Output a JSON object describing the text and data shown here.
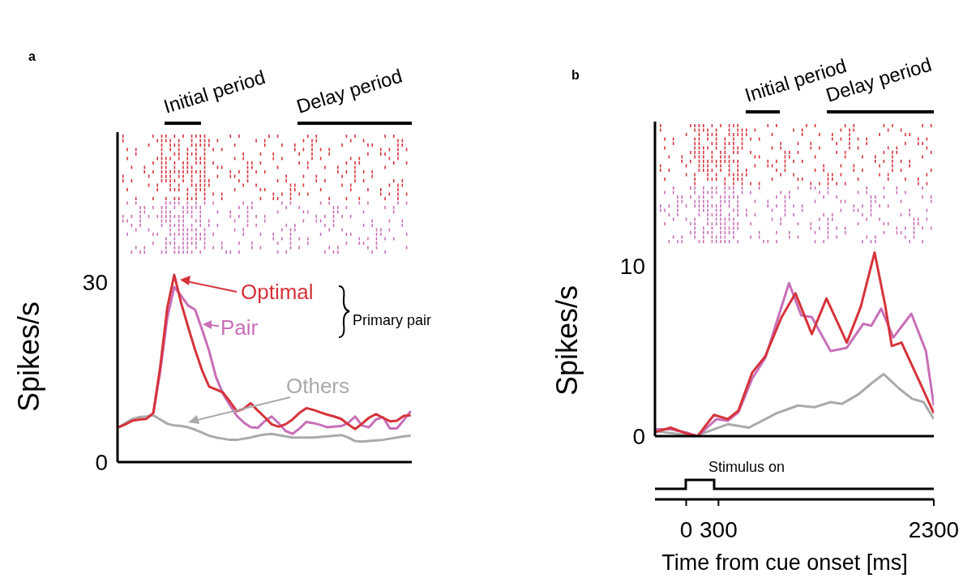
{
  "chart_data": [
    {
      "type": "line",
      "title": "a",
      "ylabel": "Spikes/s",
      "categories": [
        null,
        null,
        null,
        null,
        null,
        null,
        null,
        null,
        null,
        null,
        null,
        null,
        null,
        null,
        null,
        null,
        null,
        null,
        null,
        null,
        null,
        null,
        null,
        null,
        null,
        null,
        null,
        null,
        null,
        null,
        null,
        null,
        null,
        null,
        null,
        null,
        null,
        null,
        null,
        null,
        null,
        null,
        null
      ],
      "ylim": [
        0,
        55
      ],
      "yticks": [
        0,
        30
      ],
      "tick_labels": "y",
      "legend": "left",
      "marker": "none",
      "line_style": "solid",
      "annotations": [
        "Initial period",
        "Delay period",
        "Primary pair"
      ],
      "series": [
        {
          "name": "Optimal",
          "color": "#d6333a",
          "values": [
            5.8,
            6.3,
            6.9,
            7.1,
            7.2,
            8.2,
            16,
            25.7,
            31.2,
            26.5,
            22.5,
            18.7,
            15.3,
            12.6,
            12.1,
            11.6,
            10.1,
            8.5,
            8.9,
            9.8,
            8.6,
            7.5,
            6.3,
            5.9,
            6.3,
            7.1,
            8.2,
            9.0,
            8.7,
            8.3,
            7.9,
            7.6,
            7.2,
            6.3,
            5.5,
            6.4,
            7.4,
            8.0,
            7.4,
            6.8,
            6.9,
            7.7,
            7.8
          ]
        },
        {
          "name": "Pair",
          "color": "#c86fb8",
          "values": [
            null,
            null,
            null,
            null,
            null,
            8.2,
            15.2,
            24,
            29.2,
            27.7,
            26.1,
            25.4,
            22.1,
            18.6,
            14.2,
            11.4,
            9.5,
            7.7,
            6.6,
            5.8,
            5.7,
            6.8,
            7.6,
            6.5,
            5.2,
            4.7,
            5.6,
            6.7,
            6.5,
            6.2,
            5.8,
            5.9,
            6.0,
            6.5,
            7.6,
            6.1,
            5.8,
            7.1,
            7.5,
            5.6,
            5.6,
            7.0,
            8.5
          ]
        },
        {
          "name": "Others",
          "color": "#aaaaaa",
          "values": [
            5.8,
            6.5,
            7.2,
            7.5,
            7.6,
            7.8,
            7.1,
            6.4,
            6.1,
            6.0,
            5.8,
            5.4,
            4.9,
            4.4,
            4.1,
            3.9,
            3.7,
            3.7,
            3.9,
            4.1,
            4.4,
            4.6,
            4.7,
            4.5,
            4.3,
            4.1,
            4.1,
            4.1,
            4.1,
            4.2,
            4.3,
            4.4,
            4.5,
            4.1,
            3.5,
            3.4,
            3.5,
            3.6,
            3.7,
            3.9,
            4.1,
            4.3,
            4.4
          ]
        }
      ]
    },
    {
      "type": "line",
      "title": "b",
      "ylabel": "Spikes/s",
      "xlabel": "Time from cue onset [ms]",
      "xlim": [
        -290,
        2300
      ],
      "xticks": [
        0,
        300,
        2300
      ],
      "ylim": [
        0,
        18.5
      ],
      "yticks": [
        0,
        10
      ],
      "marker": "none",
      "line_style": "solid",
      "annotations": [
        "Initial period",
        "Delay period",
        "Stimulus on"
      ],
      "series": [
        {
          "color": "#d6333a",
          "x": [
            -290,
            -144,
            8,
            106,
            258,
            386,
            485,
            614,
            735,
            886,
            1015,
            1167,
            1303,
            1492,
            1621,
            1750,
            1848,
            1909,
            2000,
            2174,
            2300
          ],
          "values": [
            0.24,
            0.5,
            0.14,
            0,
            1.25,
            1.0,
            1.5,
            3.75,
            4.7,
            7.0,
            8.4,
            6.0,
            8.1,
            5.5,
            7.6,
            10.8,
            7.7,
            5.3,
            5.5,
            3.1,
            1.35
          ]
        },
        {
          "color": "#c86fb8",
          "x": [
            -290,
            -144,
            8,
            106,
            280,
            386,
            485,
            614,
            735,
            955,
            1068,
            1167,
            1341,
            1492,
            1644,
            1720,
            1811,
            1924,
            2091,
            2227,
            2300
          ],
          "values": [
            0.4,
            0.4,
            0.2,
            0,
            1.0,
            0.9,
            1.4,
            3.4,
            4.6,
            9.0,
            7.1,
            7.0,
            5.0,
            5.2,
            6.6,
            6.5,
            7.5,
            5.8,
            7.2,
            5.0,
            1.8
          ]
        },
        {
          "color": "#aaaaaa",
          "x": [
            -290,
            83,
            386,
            583,
            841,
            1038,
            1189,
            1341,
            1447,
            1598,
            1720,
            1833,
            1977,
            2098,
            2205,
            2300
          ],
          "values": [
            0.3,
            0,
            0.7,
            0.5,
            1.35,
            1.8,
            1.7,
            2.0,
            1.9,
            2.45,
            3.1,
            3.65,
            2.8,
            2.2,
            2.0,
            1.0
          ]
        }
      ]
    }
  ]
}
